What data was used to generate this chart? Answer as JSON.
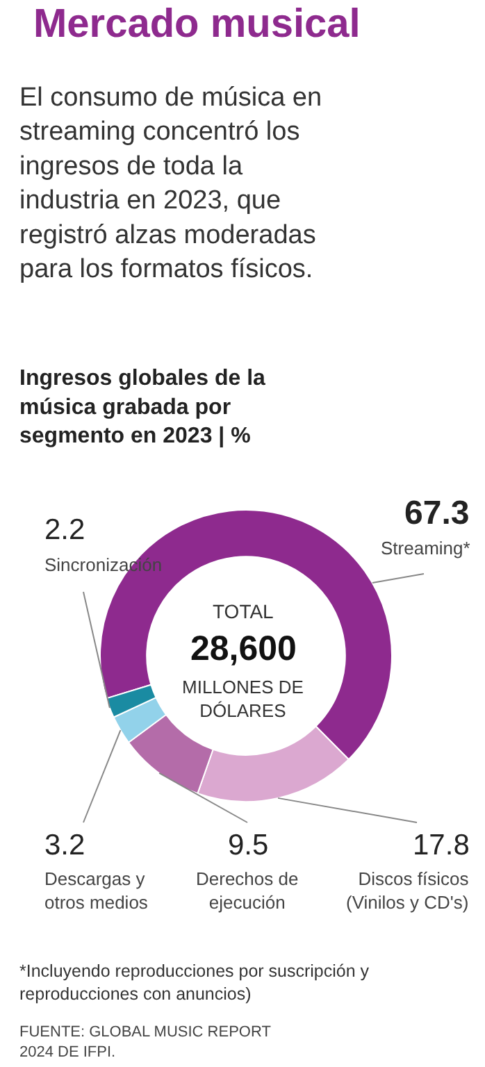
{
  "chart_data": {
    "type": "donut",
    "title": "Mercado musical",
    "subtitle": "El consumo de música en streaming concentró los ingresos de toda la industria en 2023, que registró alzas moderadas para los formatos físicos.",
    "categories": [
      "Streaming*",
      "Discos físicos (Vinilos y CD's)",
      "Derechos de ejecución",
      "Descargas y otros medios",
      "Sincronización"
    ],
    "values": [
      67.3,
      17.8,
      9.5,
      3.2,
      2.2
    ],
    "colors": [
      "#8e2a8e",
      "#dba8d0",
      "#b46ca9",
      "#92d2ea",
      "#1a8ba2"
    ],
    "data_labels": true,
    "legend": false,
    "annotations": [
      "Ingresos globales de la música grabada por segmento en 2023 | %",
      "TOTAL",
      "28,600",
      "MILLONES DE DÓLARES",
      "*Incluyendo reproducciones por suscripción y reproducciones con anuncios)",
      "FUENTE: GLOBAL MUSIC REPORT 2024 DE IFPI."
    ]
  }
}
